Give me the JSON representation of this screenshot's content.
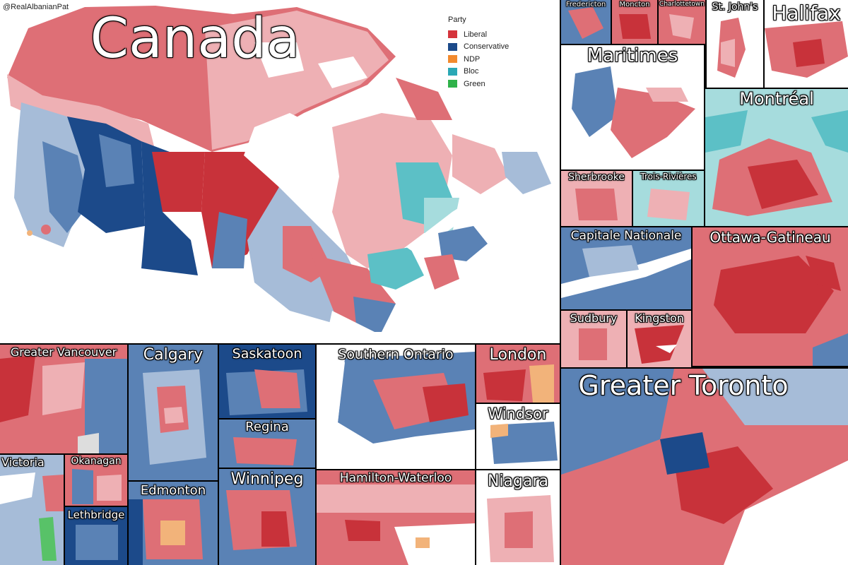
{
  "credit": "@RealAlbanianPat",
  "legend": {
    "title": "Party",
    "items": [
      {
        "label": "Liberal",
        "color": "#d5343c"
      },
      {
        "label": "Conservative",
        "color": "#1c4a8a"
      },
      {
        "label": "NDP",
        "color": "#f28a2e"
      },
      {
        "label": "Bloc",
        "color": "#2aa8b5"
      },
      {
        "label": "Green",
        "color": "#2fb24a"
      }
    ]
  },
  "colors": {
    "lib_dark": "#c8323a",
    "lib_mid": "#de6f76",
    "lib_light": "#eeb0b4",
    "con_dark": "#1c4a8a",
    "con_mid": "#5a82b5",
    "con_light": "#a6bcd8",
    "bloc_mid": "#5cc0c6",
    "bloc_light": "#a6dcdd",
    "ndp": "#f2b37a",
    "green": "#58c268",
    "water": "#ffffff"
  },
  "panels": {
    "canada": "Canada",
    "fredericton": "Fredericton",
    "moncton": "Moncton",
    "charlottetown": "Charlottetown",
    "stjohns": "St. John's",
    "halifax": "Halifax",
    "maritimes": "Maritimes",
    "montreal": "Montréal",
    "sherbrooke": "Sherbrooke",
    "troisrivieres": "Trois-Rivières",
    "capitale": "Capitale Nationale",
    "ottawa": "Ottawa-Gatineau",
    "sudbury": "Sudbury",
    "kingston": "Kingston",
    "vancouver": "Greater Vancouver",
    "calgary": "Calgary",
    "saskatoon": "Saskatoon",
    "sontario": "Southern Ontario",
    "london": "London",
    "toronto": "Greater Toronto",
    "regina": "Regina",
    "windsor": "Windsor",
    "victoria": "Victoria",
    "okanagan": "Okanagan",
    "edmonton": "Edmonton",
    "winnipeg": "Winnipeg",
    "hamilton": "Hamilton-Waterloo",
    "niagara": "Niagara",
    "lethbridge": "Lethbridge"
  }
}
